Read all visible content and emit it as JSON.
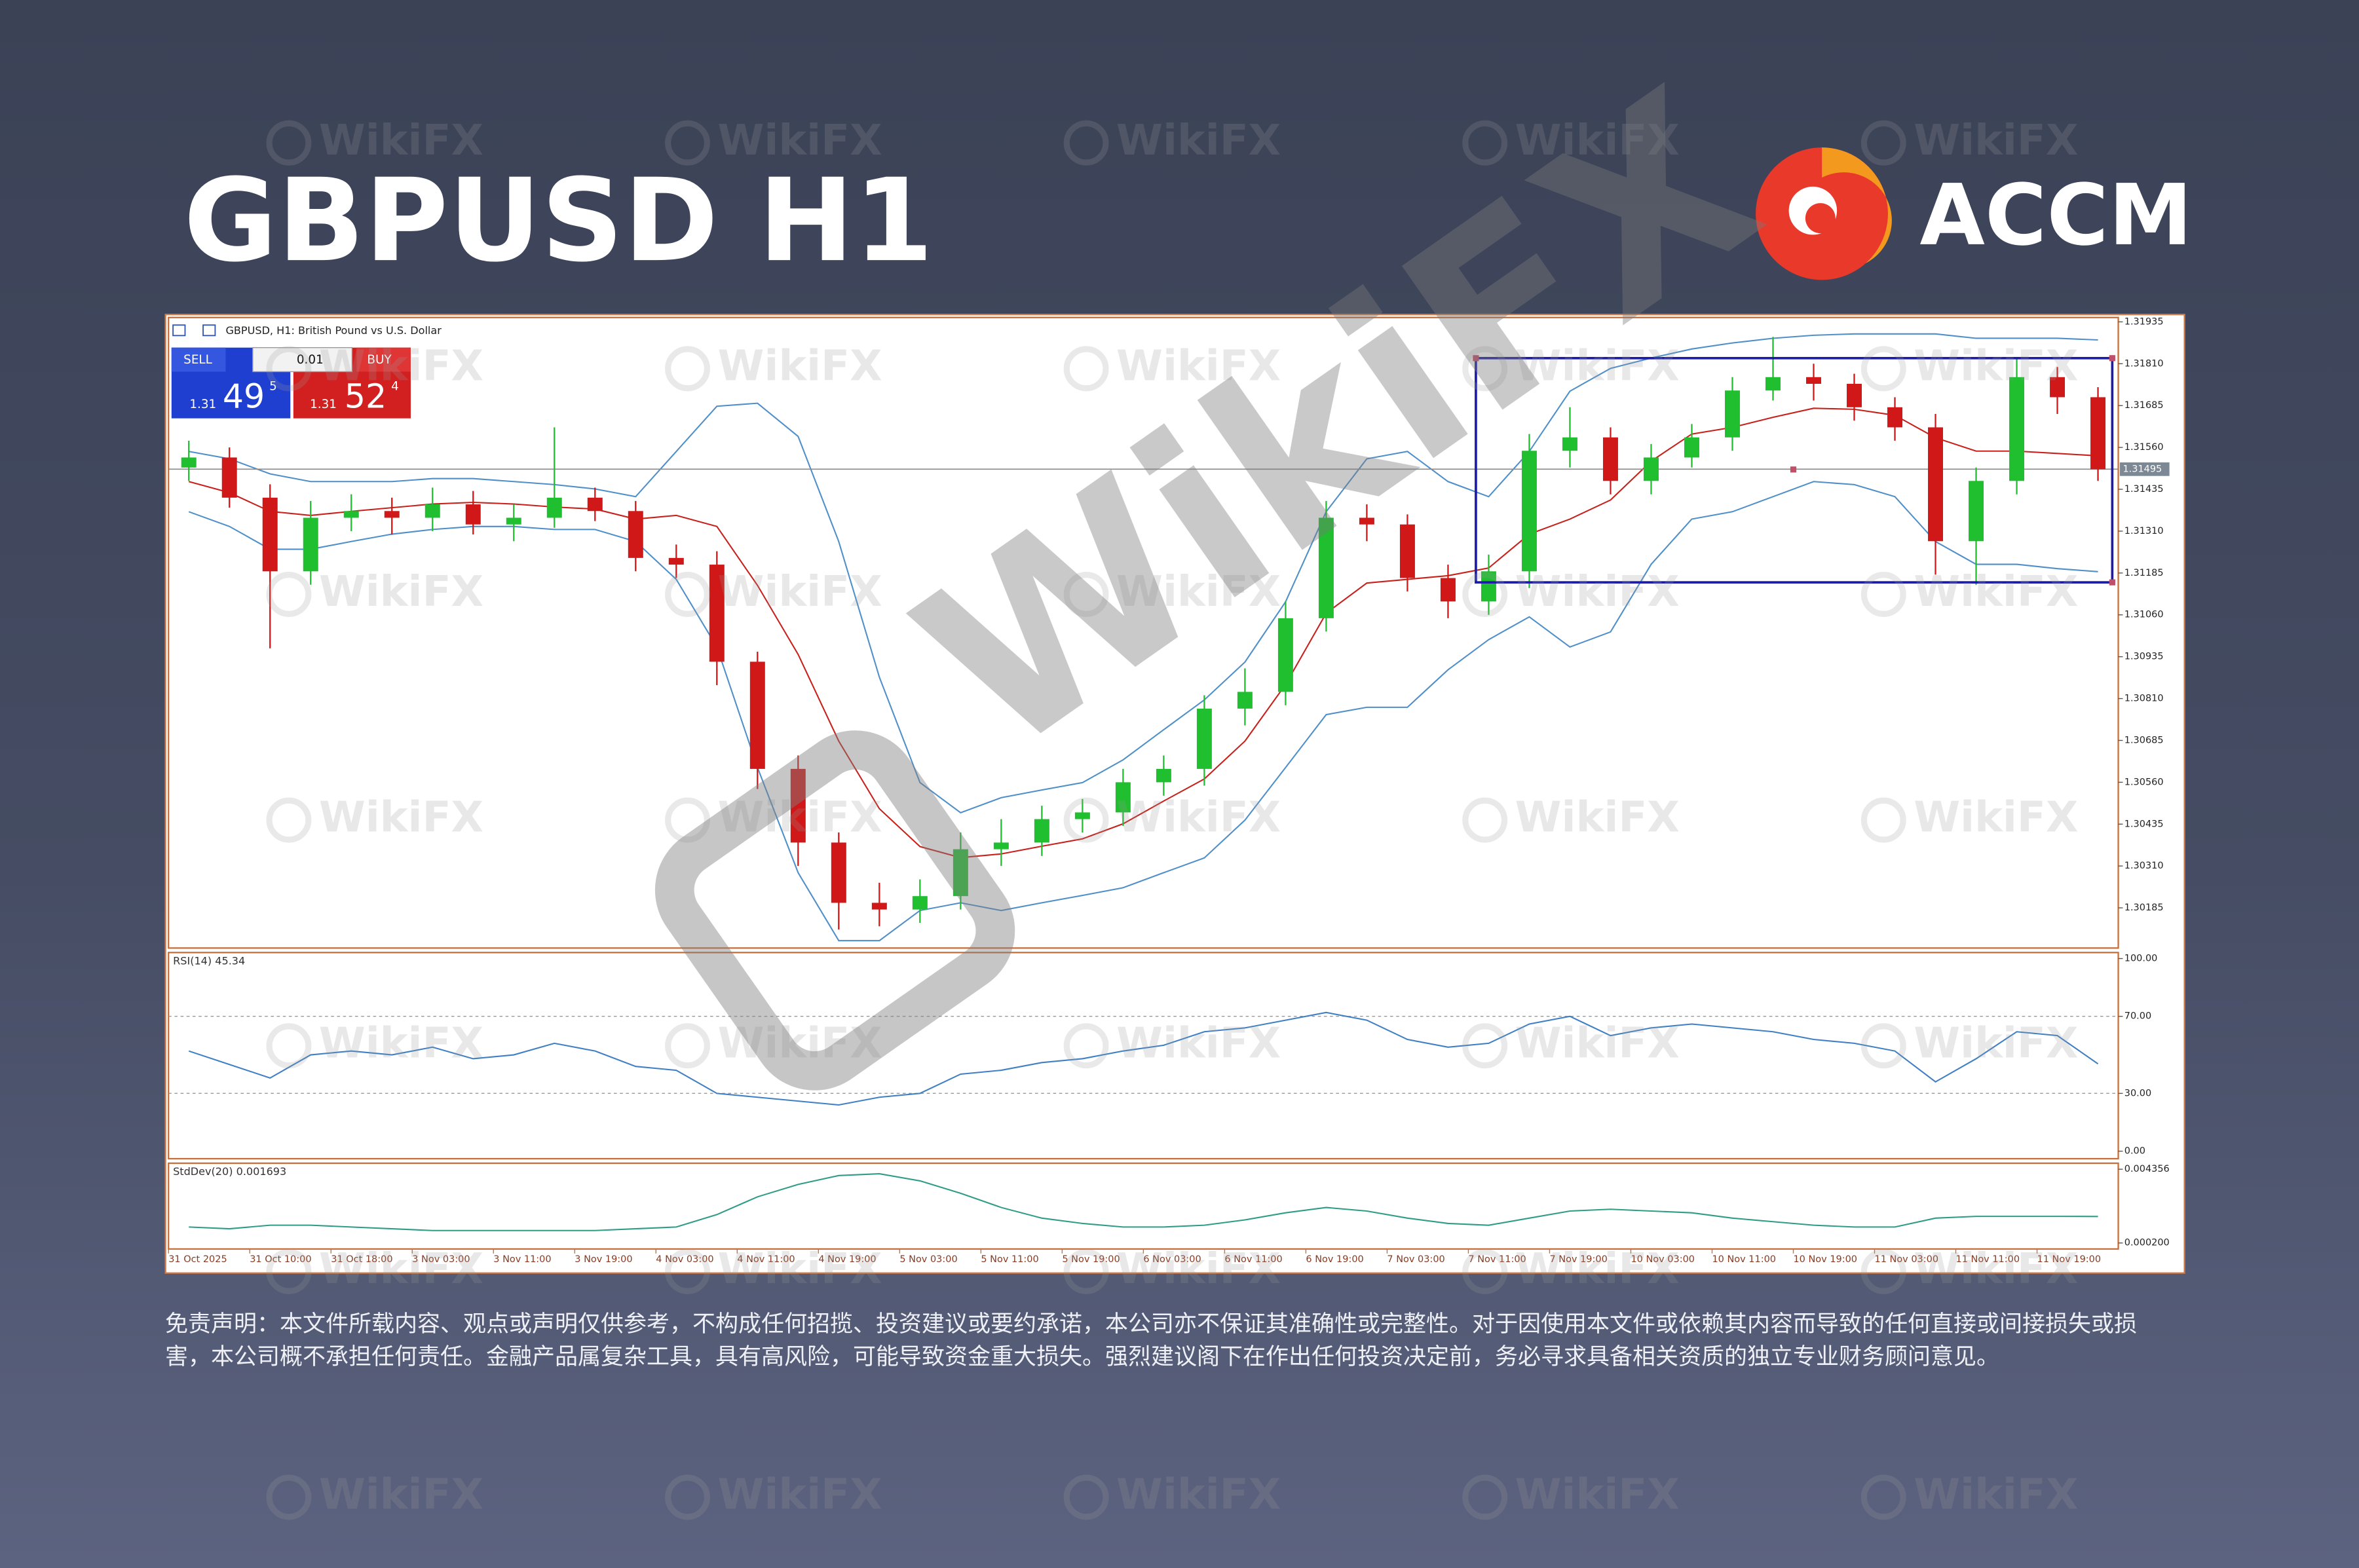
{
  "header": {
    "title": "GBPUSD H1",
    "brand": "ACCM"
  },
  "watermark": "WikiFX",
  "trade": {
    "sell": "SELL",
    "buy": "BUY",
    "lot": "0.01",
    "sell_price": {
      "big": "1.31",
      "pips": "49",
      "point": "5"
    },
    "buy_price": {
      "big": "1.31",
      "pips": "52",
      "point": "4"
    }
  },
  "chart_data": [
    {
      "type": "candlestick",
      "title": "GBPUSD, H1: British Pound vs U.S. Dollar",
      "categories": [
        "31 Oct 2025",
        null,
        "31 Oct 10:00",
        null,
        "31 Oct 18:00",
        null,
        "3 Nov 03:00",
        null,
        "3 Nov 11:00",
        null,
        "3 Nov 19:00",
        null,
        "4 Nov 03:00",
        null,
        "4 Nov 11:00",
        null,
        "4 Nov 19:00",
        null,
        "5 Nov 03:00",
        null,
        "5 Nov 11:00",
        null,
        "5 Nov 19:00",
        null,
        "6 Nov 03:00",
        null,
        "6 Nov 11:00",
        null,
        "6 Nov 19:00",
        null,
        "7 Nov 03:00",
        null,
        "7 Nov 11:00",
        null,
        "7 Nov 19:00",
        null,
        "10 Nov 03:00",
        null,
        "10 Nov 11:00",
        null,
        "10 Nov 19:00",
        null,
        "11 Nov 03:00",
        null,
        "11 Nov 11:00",
        null,
        "11 Nov 19:00",
        null
      ],
      "open": [
        1.315,
        1.3153,
        1.3141,
        1.3119,
        1.3135,
        1.3137,
        1.3135,
        1.3139,
        1.3133,
        1.3135,
        1.3141,
        1.3137,
        1.3123,
        1.3121,
        1.3092,
        1.306,
        1.3038,
        1.302,
        1.3018,
        1.3022,
        1.3036,
        1.3038,
        1.3045,
        1.3047,
        1.3056,
        1.306,
        1.3078,
        1.3083,
        1.3105,
        1.3135,
        1.3133,
        1.3117,
        1.311,
        1.3119,
        1.3155,
        1.3159,
        1.3146,
        1.3153,
        1.3159,
        1.3173,
        1.3177,
        1.3175,
        1.3168,
        1.3162,
        1.3128,
        1.3146,
        1.3177,
        1.3171
      ],
      "high": [
        1.3158,
        1.3156,
        1.3145,
        1.314,
        1.3142,
        1.3141,
        1.3144,
        1.3143,
        1.3139,
        1.3162,
        1.3144,
        1.314,
        1.3127,
        1.3125,
        1.3095,
        1.3064,
        1.3041,
        1.3026,
        1.3027,
        1.3041,
        1.3045,
        1.3049,
        1.3051,
        1.306,
        1.3064,
        1.3082,
        1.309,
        1.311,
        1.314,
        1.3139,
        1.3136,
        1.3121,
        1.3124,
        1.316,
        1.3168,
        1.3162,
        1.3157,
        1.3163,
        1.3177,
        1.3189,
        1.3181,
        1.3178,
        1.3171,
        1.3166,
        1.315,
        1.3183,
        1.318,
        1.3174
      ],
      "low": [
        1.3146,
        1.3138,
        1.3096,
        1.3115,
        1.3131,
        1.313,
        1.3131,
        1.313,
        1.3128,
        1.3132,
        1.3134,
        1.3119,
        1.3117,
        1.3085,
        1.3054,
        1.3031,
        1.3012,
        1.3013,
        1.3014,
        1.3018,
        1.3031,
        1.3034,
        1.3041,
        1.3043,
        1.3052,
        1.3055,
        1.3073,
        1.3079,
        1.3101,
        1.3128,
        1.3113,
        1.3105,
        1.3106,
        1.3114,
        1.315,
        1.3142,
        1.3142,
        1.315,
        1.3155,
        1.317,
        1.317,
        1.3164,
        1.3158,
        1.3118,
        1.3115,
        1.3142,
        1.3166,
        1.3146
      ],
      "close": [
        1.3153,
        1.3141,
        1.3119,
        1.3135,
        1.3137,
        1.3135,
        1.3139,
        1.3133,
        1.3135,
        1.3141,
        1.3137,
        1.3123,
        1.3121,
        1.3092,
        1.306,
        1.3038,
        1.302,
        1.3018,
        1.3022,
        1.3036,
        1.3038,
        1.3045,
        1.3047,
        1.3056,
        1.306,
        1.3078,
        1.3083,
        1.3105,
        1.3135,
        1.3133,
        1.3117,
        1.311,
        1.3119,
        1.3155,
        1.3159,
        1.3146,
        1.3153,
        1.3159,
        1.3173,
        1.3177,
        1.3175,
        1.3168,
        1.3162,
        1.3128,
        1.3146,
        1.3177,
        1.3171,
        1.31495
      ],
      "up_color": "#1fbf2f",
      "down_color": "#d01818",
      "bands": {
        "color": "#4f8fc9",
        "middle_color": "#c8201a",
        "upper": [
          1.31548,
          1.31526,
          1.31481,
          1.31458,
          1.31458,
          1.31458,
          1.31467,
          1.31467,
          1.31458,
          1.31449,
          1.31436,
          1.31413,
          1.31548,
          1.31683,
          1.31692,
          1.31593,
          1.31279,
          1.30874,
          1.30559,
          1.30469,
          1.30514,
          1.30537,
          1.30559,
          1.30627,
          1.30717,
          1.30806,
          1.30919,
          1.31099,
          1.31368,
          1.31526,
          1.31548,
          1.31458,
          1.31413,
          1.31548,
          1.31728,
          1.31796,
          1.31827,
          1.31854,
          1.31872,
          1.31886,
          1.31895,
          1.31899,
          1.31899,
          1.31899,
          1.31886,
          1.31886,
          1.31886,
          1.31881
        ],
        "middle": [
          1.31458,
          1.31425,
          1.31369,
          1.31357,
          1.31369,
          1.3138,
          1.31391,
          1.31396,
          1.31391,
          1.31382,
          1.31376,
          1.31346,
          1.31357,
          1.31324,
          1.31148,
          1.30942,
          1.30683,
          1.30481,
          1.30368,
          1.30335,
          1.30346,
          1.30369,
          1.30391,
          1.30436,
          1.30504,
          1.3057,
          1.30683,
          1.30852,
          1.31065,
          1.31155,
          1.31166,
          1.31177,
          1.312,
          1.31301,
          1.31346,
          1.31403,
          1.31519,
          1.316,
          1.3162,
          1.3165,
          1.31677,
          1.31674,
          1.31656,
          1.31589,
          1.31549,
          1.31549,
          1.31542,
          1.31535
        ],
        "lower": [
          1.31368,
          1.31324,
          1.31256,
          1.31256,
          1.31279,
          1.31301,
          1.31315,
          1.31324,
          1.31324,
          1.31315,
          1.31315,
          1.31279,
          1.31166,
          1.30964,
          1.30604,
          1.3029,
          1.30087,
          1.30087,
          1.30177,
          1.302,
          1.30177,
          1.302,
          1.30222,
          1.30245,
          1.3029,
          1.30334,
          1.30447,
          1.30604,
          1.30762,
          1.30784,
          1.30784,
          1.30896,
          1.30986,
          1.31054,
          1.30964,
          1.31009,
          1.31211,
          1.31346,
          1.31368,
          1.31413,
          1.31458,
          1.31449,
          1.31413,
          1.31279,
          1.31211,
          1.31211,
          1.31198,
          1.31189
        ]
      },
      "last_price": 1.31495,
      "ylim": [
        1.30065,
        1.31948
      ],
      "yticks": [
        1.31935,
        {
          "value": 1.3181,
          "label": "1.31810"
        },
        1.31685,
        {
          "value": 1.3156,
          "label": "1.31560"
        },
        1.31435,
        {
          "value": 1.3131,
          "label": "1.31310"
        },
        1.31185,
        {
          "value": 1.3106,
          "label": "1.31060"
        },
        1.30935,
        {
          "value": 1.3081,
          "label": "1.30810"
        },
        1.30685,
        {
          "value": 1.3056,
          "label": "1.30560"
        },
        1.30435,
        {
          "value": 1.3031,
          "label": "1.30310"
        },
        1.30185
      ]
    },
    {
      "type": "line",
      "title": "RSI(14) 45.34",
      "color": "#3f7fc4",
      "values": [
        52,
        45,
        38,
        50,
        52,
        50,
        54,
        48,
        50,
        56,
        52,
        44,
        42,
        30,
        28,
        26,
        24,
        28,
        30,
        40,
        42,
        46,
        48,
        52,
        55,
        62,
        64,
        68,
        72,
        68,
        58,
        54,
        56,
        66,
        70,
        60,
        64,
        66,
        64,
        62,
        58,
        56,
        52,
        36,
        48,
        62,
        60,
        45.34
      ],
      "ylim": [
        0,
        100
      ],
      "yticks": [
        {
          "value": 100,
          "label": "100.00"
        },
        {
          "value": 70,
          "label": "70.00"
        },
        {
          "value": 30,
          "label": "30.00"
        },
        {
          "value": 0,
          "label": "0.00"
        }
      ]
    },
    {
      "type": "line",
      "title": "StdDev(20) 0.001693",
      "color": "#2f9c86",
      "values": [
        0.0011,
        0.001,
        0.0012,
        0.0012,
        0.0011,
        0.001,
        0.0009,
        0.0009,
        0.0009,
        0.0009,
        0.0009,
        0.001,
        0.0011,
        0.0018,
        0.0028,
        0.0035,
        0.004,
        0.0041,
        0.0037,
        0.003,
        0.0022,
        0.0016,
        0.0013,
        0.0011,
        0.0011,
        0.0012,
        0.0015,
        0.0019,
        0.0022,
        0.002,
        0.0016,
        0.0013,
        0.0012,
        0.0016,
        0.002,
        0.0021,
        0.002,
        0.0019,
        0.0016,
        0.0014,
        0.0012,
        0.0011,
        0.0011,
        0.0016,
        0.0017,
        0.0017,
        0.0017,
        0.001693
      ],
      "ylim": [
        0.0002,
        0.004356
      ],
      "yticks": [
        {
          "value": 0.004356,
          "label": "0.004356"
        },
        {
          "value": 0.0002,
          "label": "0.000200"
        }
      ]
    }
  ],
  "disclaimer": "免责声明：本文件所载内容、观点或声明仅供参考，不构成任何招揽、投资建议或要约承诺，本公司亦不保证其准确性或完整性。对于因使用本文件或依赖其内容而导致的任何直接或间接损失或损害，本公司概不承担任何责任。金融产品属复杂工具，具有高风险，可能导致资金重大损失。强烈建议阁下在作出任何投资决定前，务必寻求具备相关资质的独立专业财务顾问意见。"
}
